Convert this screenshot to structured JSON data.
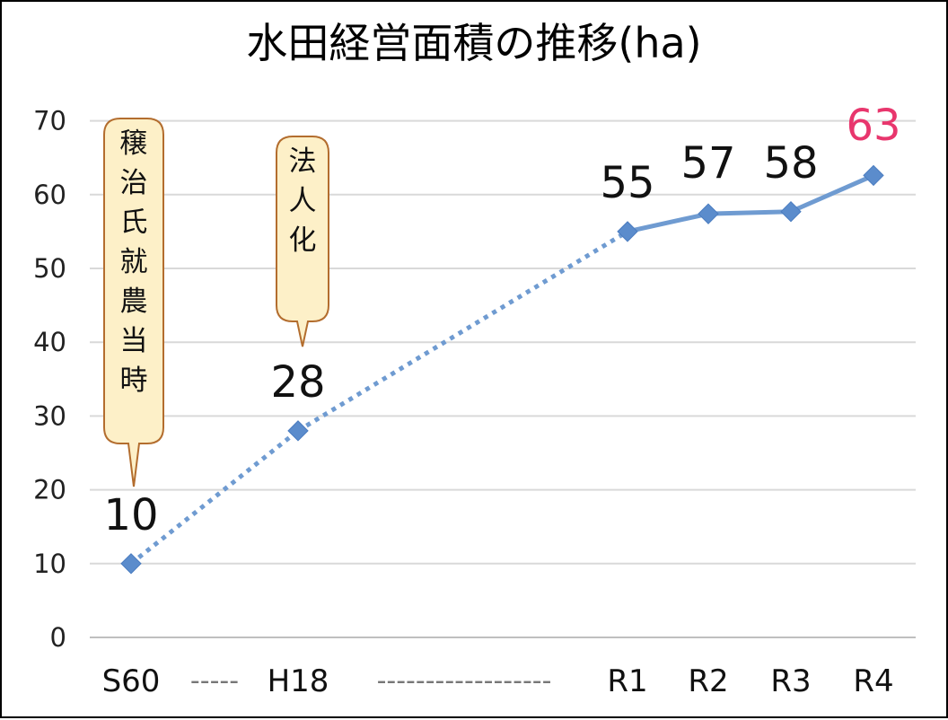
{
  "chart_data": {
    "type": "line",
    "title": "水田経営面積の推移(ha)",
    "xlabel": "",
    "ylabel": "",
    "categories": [
      "S60",
      "H18",
      "R1",
      "R2",
      "R3",
      "R4"
    ],
    "x_axis_separators": [
      "-----",
      "------------------"
    ],
    "series": [
      {
        "values": [
          10,
          28,
          55,
          57,
          58,
          63
        ],
        "plotted_values": [
          10,
          28,
          55,
          57.4,
          57.7,
          62.6
        ],
        "data_labels": [
          "10",
          "28",
          "55",
          "57",
          "58",
          "63"
        ],
        "dashed_segments_until_index": 2
      }
    ],
    "ylim": [
      0,
      70
    ],
    "yticks": [
      0,
      10,
      20,
      30,
      40,
      50,
      60,
      70
    ],
    "grid": true,
    "legend": "none",
    "annotations": [
      {
        "text": "穣治氏就農当時",
        "points_to": "S60"
      },
      {
        "text": "法人化",
        "points_to": "H18"
      }
    ],
    "colors": {
      "line": "#6f9bd1",
      "marker": "#5b8ccc",
      "grid": "#d9d9d9",
      "highlight_label": "#e8366d",
      "callout_fill": "#fdf0c8",
      "callout_border": "#b36d2e"
    }
  }
}
